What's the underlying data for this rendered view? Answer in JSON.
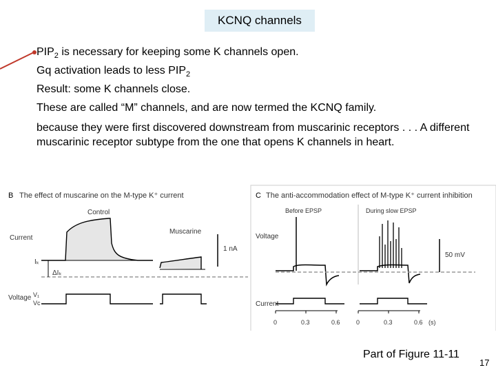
{
  "slide": {
    "title": "KCNQ channels",
    "bullets": [
      "is necessary for keeping some K channels open.",
      "Gq activation leads to less PIP",
      "Result: some K channels close.",
      "These are called “M” channels, and are now termed the KCNQ family."
    ],
    "pip": "PIP",
    "sub2": "2",
    "paragraph": "because they were first discovered downstream from muscarinic receptors . . . A different muscarinic receptor subtype from the one that opens K channels in heart.",
    "caption": "Part of Figure 11-11",
    "page_number": "17"
  },
  "figure": {
    "panel_b": {
      "letter": "B",
      "title": "The effect of muscarine on the M-type K⁺ current",
      "control_label": "Control",
      "muscarine_label": "Muscarine",
      "current_label": "Current",
      "voltage_label": "Voltage",
      "ik_label": "Iₖ",
      "delta_ik_label": "ΔIₖ",
      "scale_label": "1 nA",
      "v1_label": "V₁",
      "vc_label": "Vc"
    },
    "panel_c": {
      "letter": "C",
      "title": "The anti-accommodation effect of M-type K⁺ current inhibition",
      "before_label": "Before EPSP",
      "during_label": "During slow EPSP",
      "voltage_label": "Voltage",
      "current_label": "Current",
      "scale_label": "50 mV",
      "axis_ticks": [
        "0",
        "0.3",
        "0.6",
        "0",
        "0.3",
        "0.6"
      ],
      "axis_unit": "(s)"
    }
  }
}
